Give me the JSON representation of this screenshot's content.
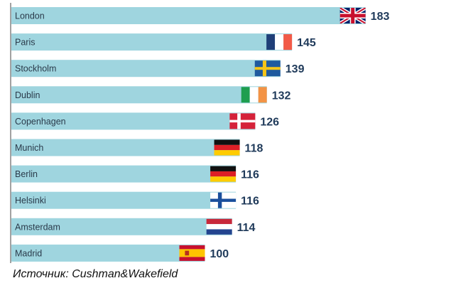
{
  "chart_data": {
    "type": "bar",
    "orientation": "horizontal",
    "categories": [
      "London",
      "Paris",
      "Stockholm",
      "Dublin",
      "Copenhagen",
      "Munich",
      "Berlin",
      "Helsinki",
      "Amsterdam",
      "Madrid"
    ],
    "values": [
      183,
      145,
      139,
      132,
      126,
      118,
      116,
      116,
      114,
      100
    ],
    "flags": [
      "uk",
      "france",
      "sweden",
      "ireland",
      "denmark",
      "germany",
      "germany",
      "finland",
      "netherlands",
      "spain"
    ],
    "bar_color": "#9fd5df",
    "value_color": "#1f3a5a",
    "label_color": "#2a3a4a",
    "grid": false,
    "legend": "none"
  },
  "source": "Источник: Cushman&Wakefield"
}
